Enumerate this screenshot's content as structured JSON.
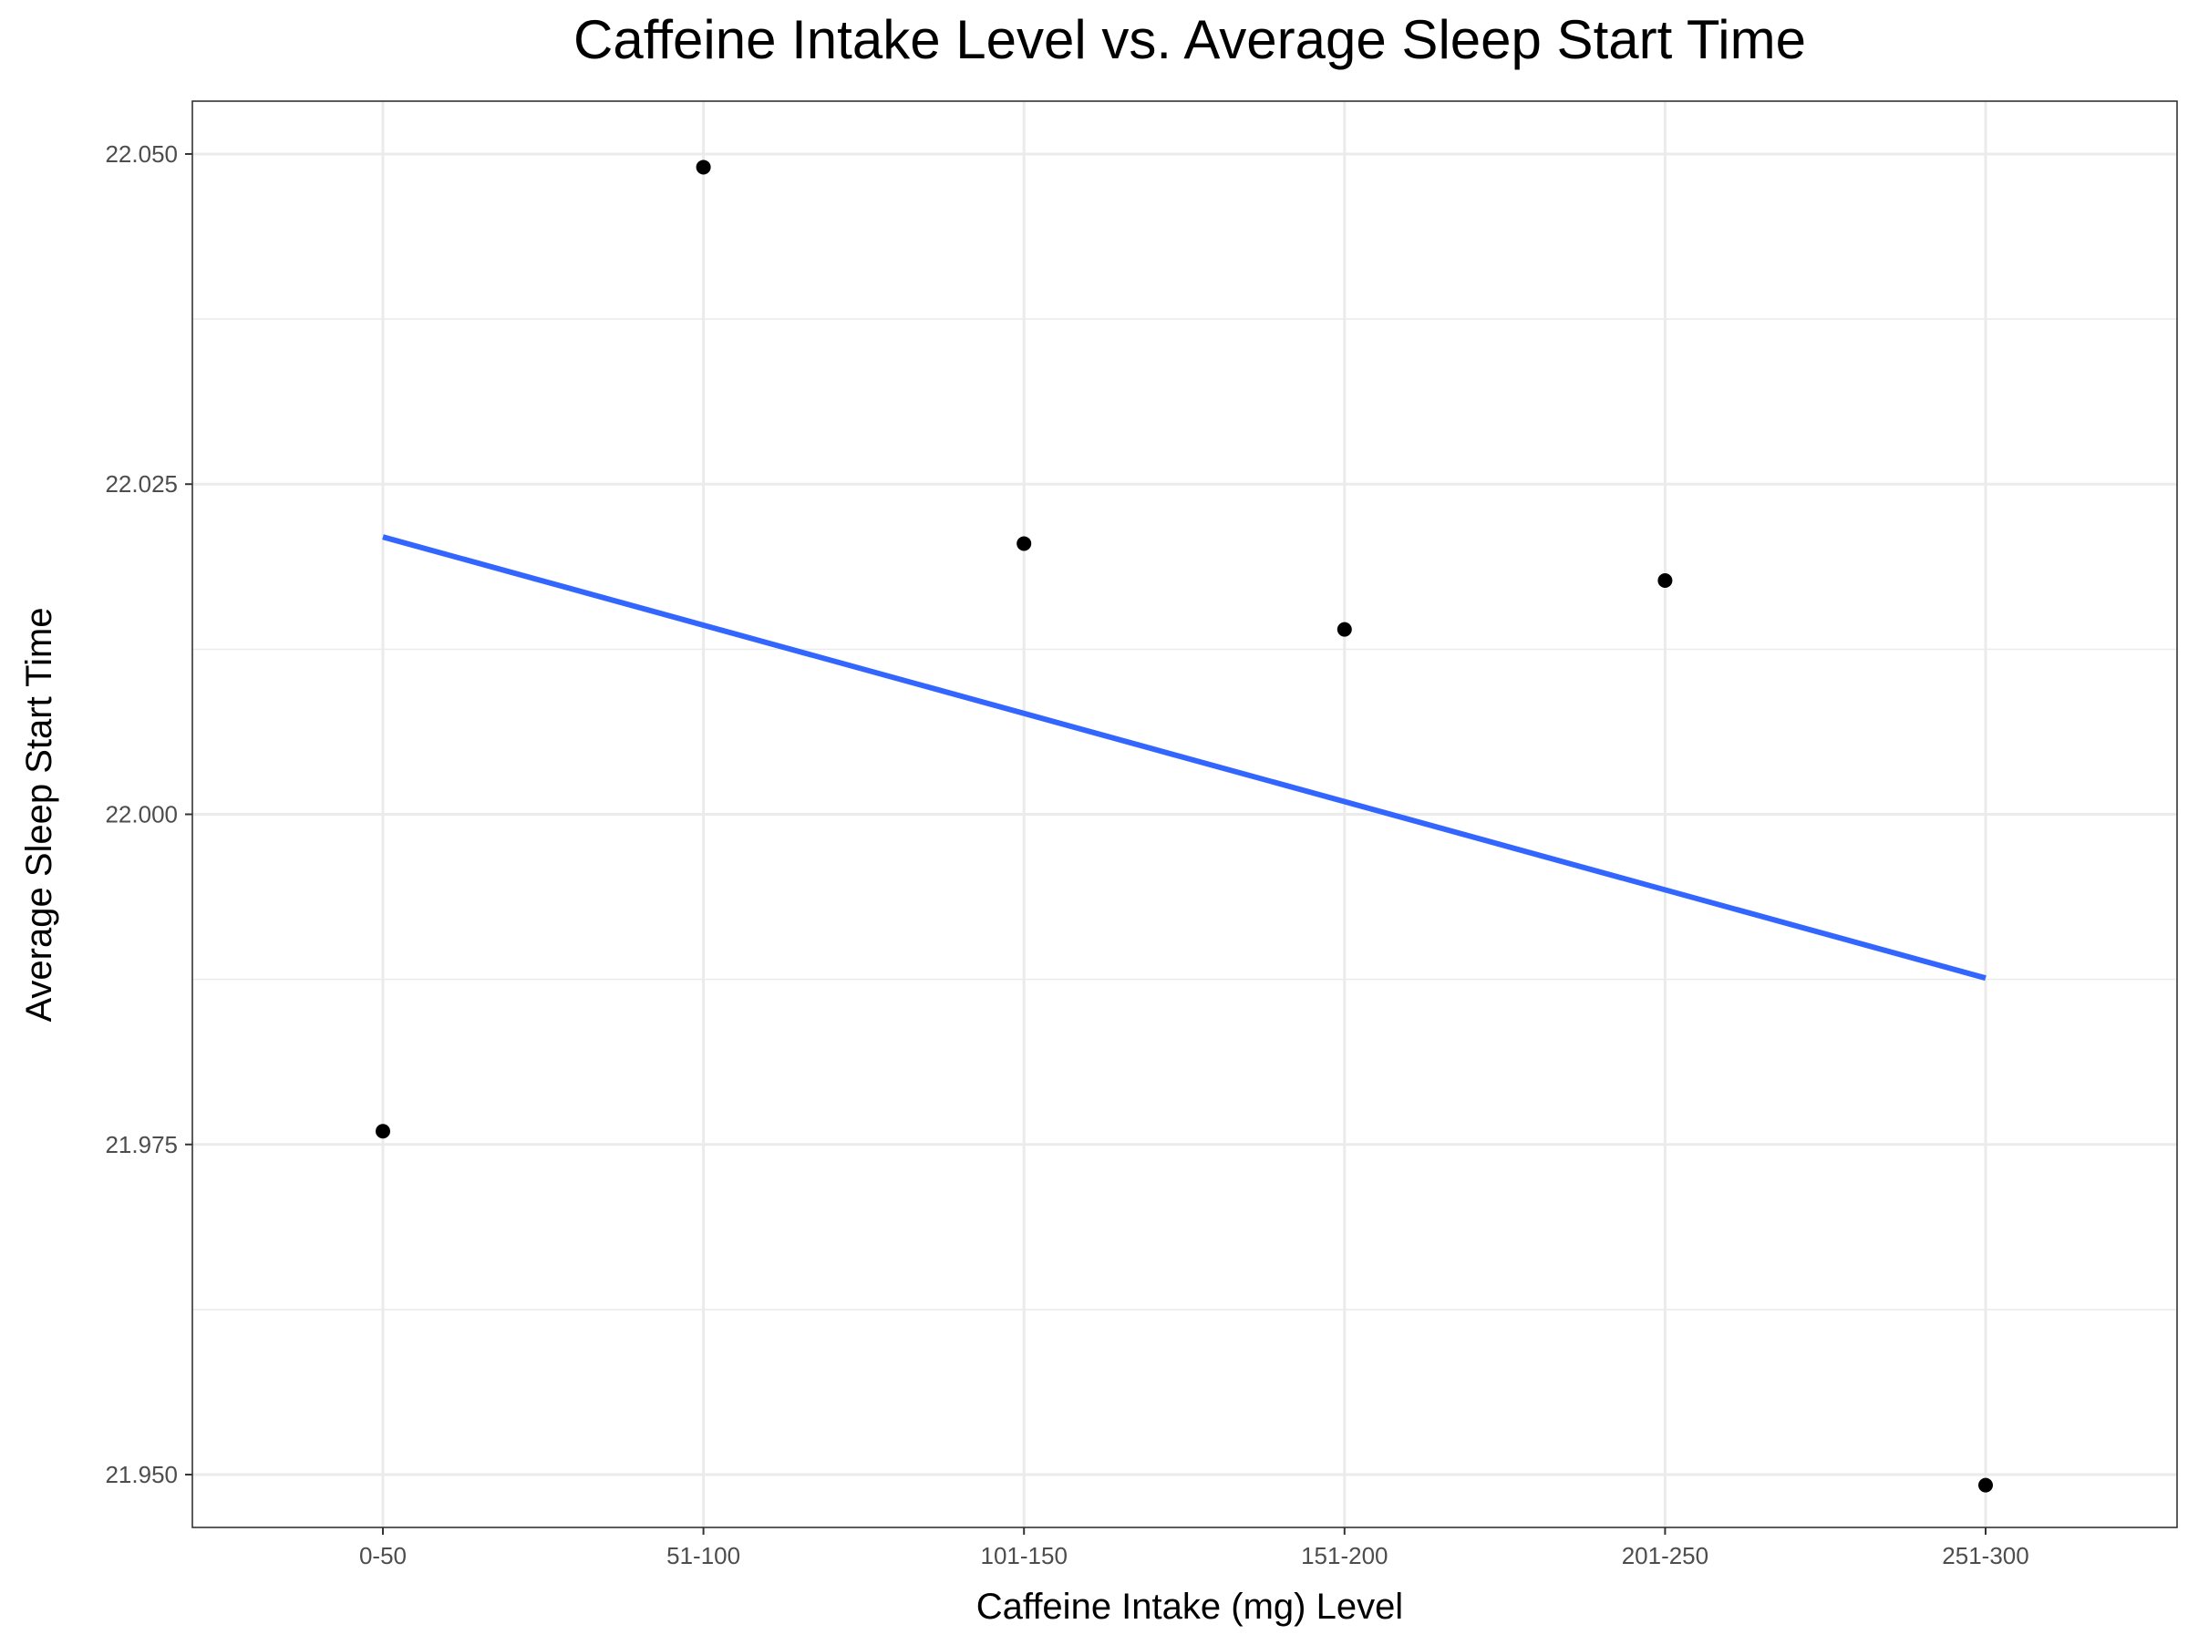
{
  "chart_data": {
    "type": "scatter",
    "title": "Caffeine Intake Level vs. Average Sleep Start Time",
    "xlabel": "Caffeine Intake (mg) Level",
    "ylabel": "Average Sleep Start Time",
    "categories": [
      "0-50",
      "51-100",
      "101-150",
      "151-200",
      "201-250",
      "251-300"
    ],
    "values": [
      21.976,
      22.049,
      22.0205,
      22.014,
      22.0177,
      21.9492
    ],
    "ylim": [
      21.946,
      22.054
    ],
    "yticks": [
      21.95,
      21.975,
      22.0,
      22.025,
      22.05
    ],
    "ytick_labels": [
      "21.950",
      "21.975",
      "22.000",
      "22.025",
      "22.050"
    ],
    "trend_line": {
      "type": "linear",
      "from": {
        "x": "0-50",
        "y": 22.021
      },
      "to": {
        "x": "251-300",
        "y": 21.9876
      }
    },
    "grid": true,
    "colors": {
      "points": "#000000",
      "trend": "#3366ff",
      "grid": "#ebebeb",
      "panel_border": "#333333"
    }
  }
}
